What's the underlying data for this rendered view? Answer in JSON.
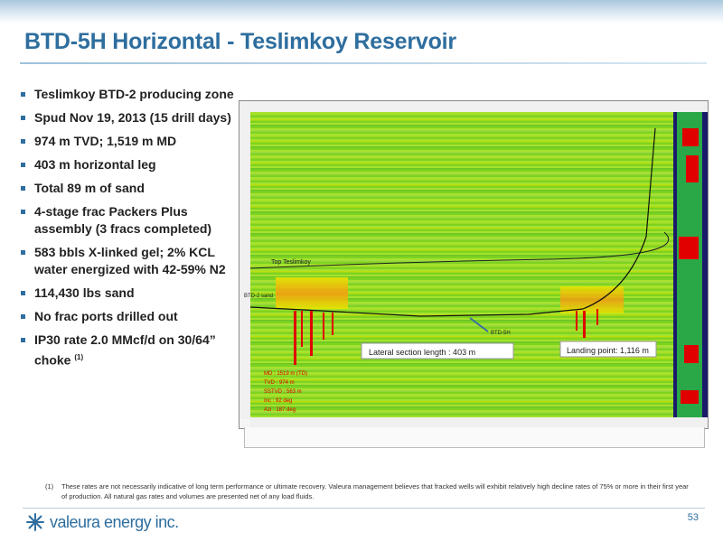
{
  "slide": {
    "title": "BTD-5H Horizontal - Teslimkoy Reservoir",
    "bullets": [
      {
        "text": "Teslimkoy BTD-2 producing zone"
      },
      {
        "text": "Spud Nov 19, 2013 (15 drill days)"
      },
      {
        "text": "974 m TVD; 1,519 m MD"
      },
      {
        "text": "403 m horizontal leg"
      },
      {
        "text": "Total 89 m of sand"
      },
      {
        "text": "4-stage frac Packers Plus assembly (3 fracs completed)"
      },
      {
        "text": "583 bbls X-linked gel; 2% KCL water energized with 42-59% N2"
      },
      {
        "text": "114,430 lbs sand"
      },
      {
        "text": "No frac ports drilled out"
      },
      {
        "text": "IP30 rate 2.0 MMcf/d on 30/64” choke",
        "sup": "(1)"
      }
    ],
    "footnote": {
      "number": "(1)",
      "text": "These rates are not necessarily indicative of long term performance or ultimate recovery. Valeura management believes that fracked wells will exhibit relatively high decline rates of 75% or more in their first year of production. All natural gas rates and volumes are presented net of any load fluids."
    },
    "logo_text": "valeura energy inc.",
    "page_number": "53"
  },
  "section_plot": {
    "top_marker_label": "Top Teslimkoy",
    "sand_marker_label": "BTD-2 sand",
    "well_label": "BTD-5H",
    "lateral_label": "Lateral section length : 403 m",
    "landing_label": "Landing point: 1,116 m",
    "well_info": [
      "MD : 1519 m (TD)",
      "TVD : 974 m",
      "SSTVD : 563 m",
      "Inc : 92 deg",
      "Azi : 187 deg"
    ],
    "colors": {
      "background_green": "#7ed321",
      "band_yellow": "#e6e600",
      "band_orange": "#f39c12",
      "log_red": "#e00000",
      "annotation_box": "#ffffff"
    }
  }
}
